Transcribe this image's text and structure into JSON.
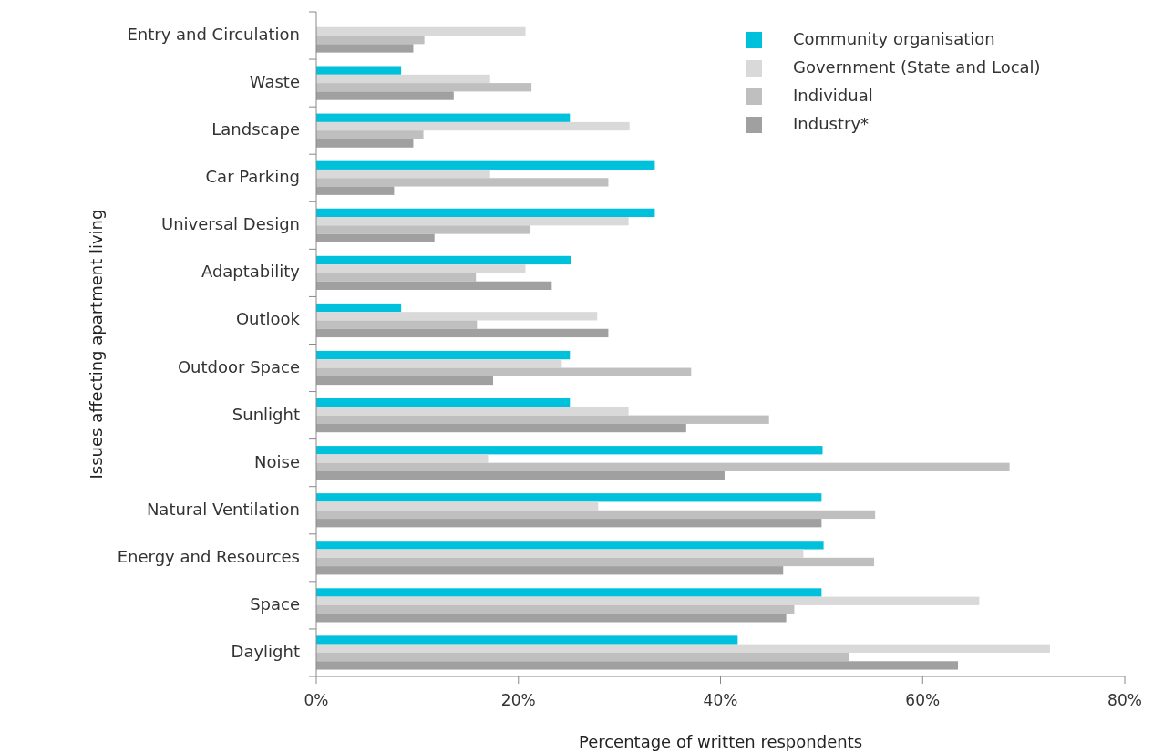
{
  "chart_data": {
    "type": "bar",
    "orientation": "horizontal",
    "xlabel": "Percentage of written respondents",
    "ylabel": "Issues affecting apartment living",
    "categories": [
      "Entry and Circulation",
      "Waste",
      "Landscape",
      "Car Parking",
      "Universal Design",
      "Adaptability",
      "Outlook",
      "Outdoor Space",
      "Sunlight",
      "Noise",
      "Natural Ventilation",
      "Energy and Resources",
      "Space",
      "Daylight"
    ],
    "series": [
      {
        "name": "Community organisation",
        "color": "#00c1dc",
        "values": [
          null,
          8.4,
          25.1,
          33.5,
          33.5,
          25.2,
          8.4,
          25.1,
          25.1,
          50.1,
          50.0,
          50.2,
          50.0,
          41.7
        ]
      },
      {
        "name": "Government (State and Local)",
        "color": "#d9d9d9",
        "values": [
          20.7,
          17.2,
          31.0,
          17.2,
          30.9,
          20.7,
          27.8,
          24.3,
          30.9,
          17.0,
          27.9,
          48.2,
          65.6,
          72.6
        ]
      },
      {
        "name": "Individual",
        "color": "#bfbfbf",
        "values": [
          10.7,
          21.3,
          10.6,
          28.9,
          21.2,
          15.8,
          15.9,
          37.1,
          44.8,
          68.6,
          55.3,
          55.2,
          47.3,
          52.7
        ]
      },
      {
        "name": "Industry*",
        "color": "#a0a0a0",
        "values": [
          9.6,
          13.6,
          9.6,
          7.7,
          11.7,
          23.3,
          28.9,
          17.5,
          36.6,
          40.4,
          50.0,
          46.2,
          46.5,
          63.5
        ]
      }
    ],
    "xlim": [
      0,
      80
    ],
    "xticks": [
      {
        "value": 0,
        "label": "0%"
      },
      {
        "value": 20,
        "label": "20%"
      },
      {
        "value": 40,
        "label": "40%"
      },
      {
        "value": 60,
        "label": "60%"
      },
      {
        "value": 80,
        "label": "80%"
      }
    ],
    "legend": "top right"
  }
}
